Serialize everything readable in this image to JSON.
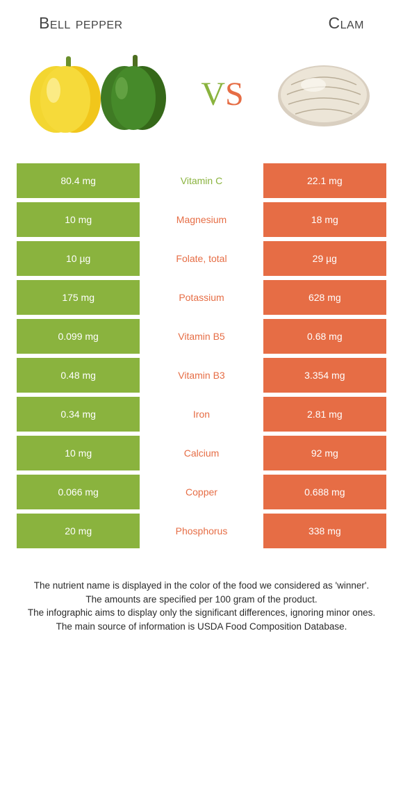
{
  "colors": {
    "green": "#8ab33e",
    "orange": "#e66d45",
    "text_dark": "#444444"
  },
  "header": {
    "left_title": "Bell pepper",
    "right_title": "Clam"
  },
  "vs": {
    "v": "V",
    "s": "S"
  },
  "nutrients": [
    {
      "name": "Vitamin C",
      "left": "80.4 mg",
      "right": "22.1 mg",
      "winner": "left"
    },
    {
      "name": "Magnesium",
      "left": "10 mg",
      "right": "18 mg",
      "winner": "right"
    },
    {
      "name": "Folate, total",
      "left": "10 µg",
      "right": "29 µg",
      "winner": "right"
    },
    {
      "name": "Potassium",
      "left": "175 mg",
      "right": "628 mg",
      "winner": "right"
    },
    {
      "name": "Vitamin B5",
      "left": "0.099 mg",
      "right": "0.68 mg",
      "winner": "right"
    },
    {
      "name": "Vitamin B3",
      "left": "0.48 mg",
      "right": "3.354 mg",
      "winner": "right"
    },
    {
      "name": "Iron",
      "left": "0.34 mg",
      "right": "2.81 mg",
      "winner": "right"
    },
    {
      "name": "Calcium",
      "left": "10 mg",
      "right": "92 mg",
      "winner": "right"
    },
    {
      "name": "Copper",
      "left": "0.066 mg",
      "right": "0.688 mg",
      "winner": "right"
    },
    {
      "name": "Phosphorus",
      "left": "20 mg",
      "right": "338 mg",
      "winner": "right"
    }
  ],
  "footer": {
    "line1": "The nutrient name is displayed in the color of the food we considered as 'winner'.",
    "line2": "The amounts are specified per 100 gram of the product.",
    "line3": "The infographic aims to display only the significant differences, ignoring minor ones.",
    "line4": "The main source of information is USDA Food Composition Database."
  }
}
